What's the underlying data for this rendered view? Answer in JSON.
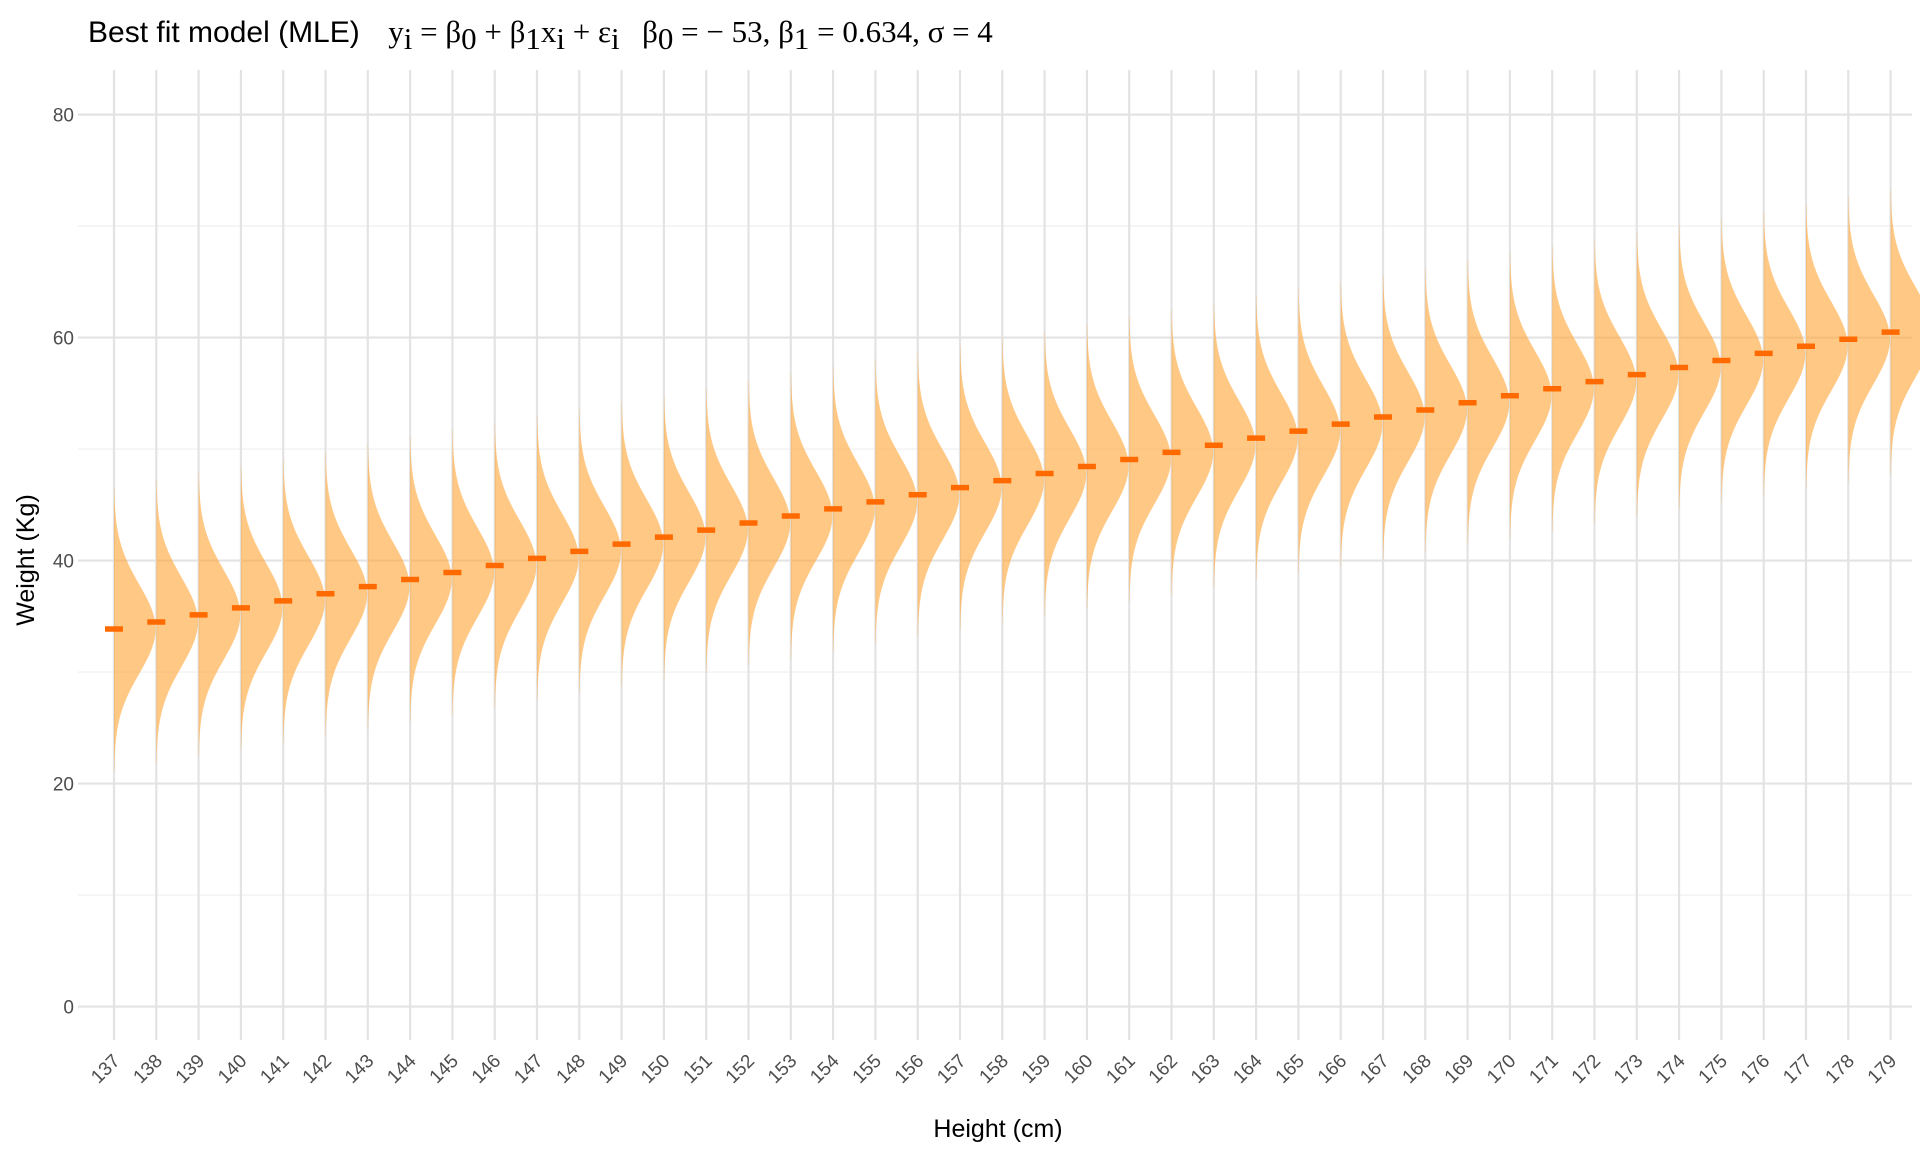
{
  "title": {
    "main": "Best fit model (MLE)",
    "equation": {
      "y": "y",
      "i": "i",
      "eq": " = ",
      "beta": "β",
      "sub0": "0",
      "sub1": "1",
      "plus": " + ",
      "x": "x",
      "eps": "ε",
      "beta0_value": " = − 53, ",
      "beta1_value": " = 0.634, ",
      "sigma": "σ",
      "sigma_value": " = 4"
    }
  },
  "chart_data": {
    "type": "violin",
    "title": "Best fit model (MLE)   y_i = β0 + β1 x_i + ε_i   β0 = −53, β1 = 0.634, σ = 4",
    "xlabel": "Height (cm)",
    "ylabel": "Weight (Kg)",
    "ylim": [
      -3,
      84
    ],
    "yticks": [
      "0",
      "20",
      "40",
      "60",
      "80"
    ],
    "yticks_values": [
      0,
      20,
      40,
      60,
      80
    ],
    "grid": true,
    "legend": "none",
    "categories": [
      "137",
      "138",
      "139",
      "140",
      "141",
      "142",
      "143",
      "144",
      "145",
      "146",
      "147",
      "148",
      "149",
      "150",
      "151",
      "152",
      "153",
      "154",
      "155",
      "156",
      "157",
      "158",
      "159",
      "160",
      "161",
      "162",
      "163",
      "164",
      "165",
      "166",
      "167",
      "168",
      "169",
      "170",
      "171",
      "172",
      "173",
      "174",
      "175",
      "176",
      "177",
      "178",
      "179"
    ],
    "x": [
      137,
      138,
      139,
      140,
      141,
      142,
      143,
      144,
      145,
      146,
      147,
      148,
      149,
      150,
      151,
      152,
      153,
      154,
      155,
      156,
      157,
      158,
      159,
      160,
      161,
      162,
      163,
      164,
      165,
      166,
      167,
      168,
      169,
      170,
      171,
      172,
      173,
      174,
      175,
      176,
      177,
      178,
      179
    ],
    "model": {
      "beta0": -53,
      "beta1": 0.634,
      "sigma": 4,
      "half_width_sd": 3.2
    },
    "means": [
      33.86,
      34.49,
      35.13,
      35.76,
      36.39,
      37.03,
      37.66,
      38.3,
      38.93,
      39.56,
      40.2,
      40.83,
      41.47,
      42.1,
      42.73,
      43.37,
      44.0,
      44.64,
      45.27,
      45.9,
      46.54,
      47.17,
      47.81,
      48.44,
      49.07,
      49.71,
      50.34,
      50.98,
      51.61,
      52.24,
      52.88,
      53.51,
      54.15,
      54.78,
      55.41,
      56.05,
      56.68,
      57.32,
      57.95,
      58.58,
      59.22,
      59.85,
      60.49
    ],
    "colors": {
      "fill": "#ffa533",
      "mean_marker": "#ff6a00",
      "grid": "#e3e3e3"
    }
  }
}
